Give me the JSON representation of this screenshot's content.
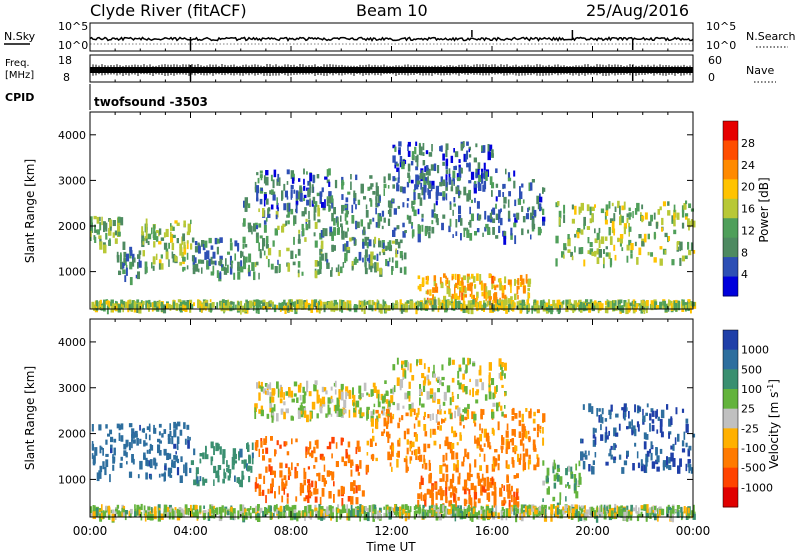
{
  "header": {
    "station": "Clyde River (fitACF)",
    "beam": "Beam 10",
    "date": "25/Aug/2016"
  },
  "strips": {
    "noise": {
      "left_label": "N.Sky",
      "left_ticks": [
        "10^5",
        "10^0"
      ],
      "right_ticks": [
        "10^5",
        "10^0"
      ],
      "right_label": "N.Search"
    },
    "freq": {
      "left_label_top": "Freq.",
      "left_label_bottom": "[MHz]",
      "left_ticks": [
        "18",
        "8"
      ],
      "right_ticks": [
        "60",
        "0"
      ],
      "right_label": "Nave"
    },
    "cpid": {
      "label": "CPID",
      "value": "twofsound -3503"
    }
  },
  "chart_data": [
    {
      "type": "heatmap",
      "title": "",
      "xlabel": "",
      "ylabel": "Slant Range [km]",
      "yticks": [
        "1000",
        "2000",
        "3000",
        "4000"
      ],
      "ylim": [
        180,
        4500
      ],
      "xlim": [
        0,
        24
      ],
      "colorbar": {
        "label": "Power [dB]",
        "ticks": [
          "4",
          "8",
          "12",
          "16",
          "20",
          "24",
          "28"
        ],
        "colors": [
          "#0000dc",
          "#2d4fb5",
          "#4e8a61",
          "#4f9f5a",
          "#b8c836",
          "#ffc300",
          "#ff8a00",
          "#ff4d00",
          "#e60000"
        ]
      },
      "regions": [
        {
          "t": [
            0.0,
            1.3
          ],
          "r": [
            1500,
            2200
          ],
          "v": 12
        },
        {
          "t": [
            1.0,
            2.0
          ],
          "r": [
            800,
            1500
          ],
          "v": 8
        },
        {
          "t": [
            2.0,
            4.0
          ],
          "r": [
            1000,
            2100
          ],
          "v": 14
        },
        {
          "t": [
            4.0,
            6.0
          ],
          "r": [
            900,
            1700
          ],
          "v": 9
        },
        {
          "t": [
            6.0,
            10.0
          ],
          "r": [
            900,
            2600
          ],
          "v": 11
        },
        {
          "t": [
            6.5,
            9.5
          ],
          "r": [
            2400,
            3200
          ],
          "v": 7
        },
        {
          "t": [
            9.5,
            13.0
          ],
          "r": [
            1800,
            3100
          ],
          "v": 9
        },
        {
          "t": [
            12.0,
            16.0
          ],
          "r": [
            2800,
            3800
          ],
          "v": 6
        },
        {
          "t": [
            13.0,
            18.0
          ],
          "r": [
            1700,
            3200
          ],
          "v": 8
        },
        {
          "t": [
            10.0,
            12.5
          ],
          "r": [
            1000,
            1700
          ],
          "v": 11
        },
        {
          "t": [
            13.0,
            17.5
          ],
          "r": [
            350,
            900
          ],
          "v": 20
        },
        {
          "t": [
            18.5,
            24.0
          ],
          "r": [
            1200,
            2500
          ],
          "v": 14
        },
        {
          "t": [
            0.0,
            24.0
          ],
          "r": [
            180,
            330
          ],
          "v": 15
        }
      ]
    },
    {
      "type": "heatmap",
      "title": "",
      "xlabel": "Time UT",
      "ylabel": "Slant Range [km]",
      "xticks": [
        "00:00",
        "04:00",
        "08:00",
        "12:00",
        "16:00",
        "20:00",
        "00:00"
      ],
      "yticks": [
        "1000",
        "2000",
        "3000",
        "4000"
      ],
      "ylim": [
        180,
        4500
      ],
      "xlim": [
        0,
        24
      ],
      "colorbar": {
        "label": "Velocity [m s",
        "label_exp": "-1",
        "label_close": "]",
        "ticks": [
          "1000",
          "500",
          "100",
          "25",
          "-25",
          "-100",
          "-500",
          "-1000"
        ],
        "colors": [
          "#1f3fa8",
          "#2d6e9e",
          "#3a8f70",
          "#63b33c",
          "#c0c0c0",
          "#ffb000",
          "#ff7a00",
          "#ff4300",
          "#e00000"
        ]
      },
      "regions": [
        {
          "t": [
            0.0,
            4.0
          ],
          "r": [
            1000,
            2200
          ],
          "v": 600
        },
        {
          "t": [
            4.0,
            6.5
          ],
          "r": [
            900,
            1800
          ],
          "v": 300
        },
        {
          "t": [
            6.5,
            11.0
          ],
          "r": [
            500,
            1900
          ],
          "v": -350
        },
        {
          "t": [
            6.5,
            12.0
          ],
          "r": [
            2300,
            3100
          ],
          "v": 0
        },
        {
          "t": [
            11.0,
            18.0
          ],
          "r": [
            1200,
            2500
          ],
          "v": -200
        },
        {
          "t": [
            12.0,
            16.5
          ],
          "r": [
            2300,
            3600
          ],
          "v": 0
        },
        {
          "t": [
            13.0,
            17.0
          ],
          "r": [
            400,
            1100
          ],
          "v": -300
        },
        {
          "t": [
            18.0,
            19.5
          ],
          "r": [
            300,
            1400
          ],
          "v": 120
        },
        {
          "t": [
            19.5,
            24.0
          ],
          "r": [
            1200,
            2600
          ],
          "v": 700
        },
        {
          "t": [
            0.0,
            24.0
          ],
          "r": [
            180,
            400
          ],
          "v": 50
        }
      ]
    }
  ]
}
